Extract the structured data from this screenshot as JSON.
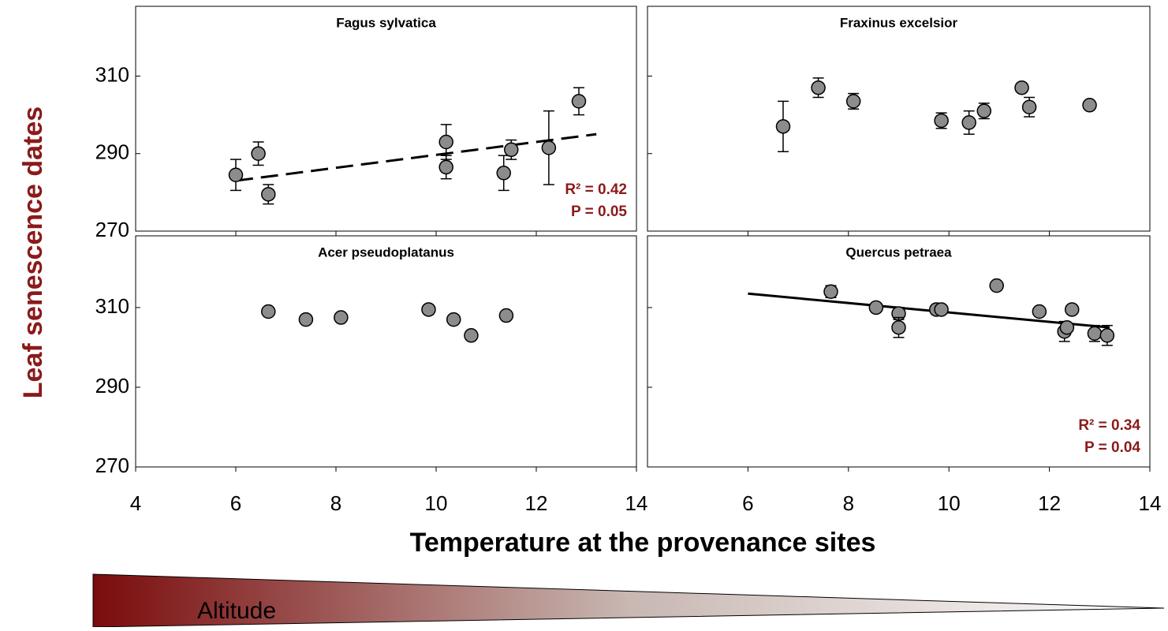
{
  "y_label": "Leaf senescence dates",
  "x_label": "Temperature at the provenance sites",
  "gradient_label": "Altitude",
  "chart_data": [
    {
      "type": "scatter",
      "title": "Fagus sylvatica",
      "color": "#8c8c8c",
      "xlim": [
        4,
        14
      ],
      "xticks": [
        6,
        8,
        10,
        12
      ],
      "xtick_labels": false,
      "ylim": [
        270,
        328
      ],
      "yticks": [
        270,
        290,
        310
      ],
      "ytick_labels": true,
      "x": [
        6.0,
        6.45,
        6.65,
        10.2,
        10.2,
        11.35,
        11.5,
        12.25,
        12.85
      ],
      "values": [
        284.5,
        290,
        279.5,
        293,
        286.5,
        285,
        291,
        291.5,
        303.5
      ],
      "errors": [
        4,
        3,
        2.5,
        4.5,
        3,
        4.5,
        2.5,
        9.5,
        3.5
      ],
      "trend": {
        "x": [
          6,
          13.2
        ],
        "y": [
          283,
          295
        ],
        "dashed": true
      },
      "annotation": [
        "R² = 0.42",
        "P = 0.05"
      ]
    },
    {
      "type": "scatter",
      "title": "Fraxinus excelsior",
      "color": "#8c8c8c",
      "xlim": [
        4,
        14
      ],
      "xticks": [
        6,
        8,
        10,
        12
      ],
      "xtick_labels": false,
      "ylim": [
        270,
        328
      ],
      "yticks": [
        270,
        290,
        310
      ],
      "ytick_labels": false,
      "x": [
        6.7,
        7.4,
        8.1,
        9.85,
        10.4,
        10.7,
        11.45,
        11.6,
        12.8
      ],
      "values": [
        297,
        307,
        303.5,
        298.5,
        298,
        301,
        307,
        302,
        302.5
      ],
      "errors": [
        6.5,
        2.5,
        2,
        2,
        3,
        2,
        0.5,
        2.5,
        1
      ]
    },
    {
      "type": "scatter",
      "title": "Acer pseudoplatanus",
      "color": "#8c8c8c",
      "xlim": [
        4,
        14
      ],
      "xticks": [
        4,
        6,
        8,
        10,
        12,
        14
      ],
      "xtick_labels": true,
      "ylim": [
        270,
        328
      ],
      "yticks": [
        270,
        290,
        310
      ],
      "ytick_labels": true,
      "x": [
        6.65,
        7.4,
        8.1,
        9.85,
        10.35,
        10.7,
        11.4
      ],
      "values": [
        309,
        307,
        307.5,
        309.5,
        307,
        303,
        308
      ],
      "errors": [
        0.5,
        0.5,
        0.5,
        1,
        1,
        0.5,
        1
      ]
    },
    {
      "type": "scatter",
      "title": "Quercus petraea",
      "color": "#8c8c8c",
      "xlim": [
        4,
        14
      ],
      "xticks": [
        6,
        8,
        10,
        12,
        14
      ],
      "xtick_labels": true,
      "ylim": [
        270,
        328
      ],
      "yticks": [
        270,
        290,
        310
      ],
      "ytick_labels": false,
      "x": [
        7.65,
        8.55,
        9.0,
        9.0,
        9.75,
        9.85,
        10.95,
        11.8,
        12.3,
        12.35,
        12.45,
        12.9,
        13.15
      ],
      "values": [
        314,
        310,
        308.5,
        305,
        309.5,
        309.5,
        315.5,
        309,
        304,
        305,
        309.5,
        303.5,
        303
      ],
      "errors": [
        1.5,
        0.5,
        1.5,
        2.5,
        1,
        0.5,
        0.5,
        0.5,
        2.5,
        1,
        1,
        2,
        2.5
      ],
      "trend": {
        "x": [
          6,
          13.2
        ],
        "y": [
          313.5,
          305
        ],
        "dashed": false
      },
      "annotation": [
        "R²  = 0.34",
        "P = 0.04"
      ]
    }
  ]
}
